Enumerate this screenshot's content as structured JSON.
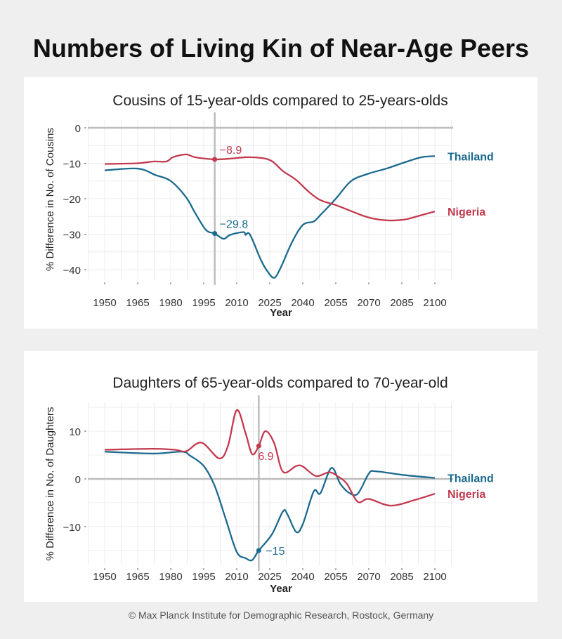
{
  "title": "Numbers of Living Kin of Near-Age Peers",
  "footer": "© Max Planck Institute for Demographic Research, Rostock, Germany",
  "colors": {
    "Thailand": "#1b6a8f",
    "Nigeria": "#c23a4e",
    "reference": "#bdbdbd"
  },
  "chart_data": [
    {
      "type": "line",
      "title": "Cousins of 15-year-olds compared to 25-years-olds",
      "xlabel": "Year",
      "ylabel": "% Difference in No. of Cousins",
      "xlim": [
        1950,
        2100
      ],
      "ylim": [
        -43,
        2
      ],
      "xticks": [
        1950,
        1965,
        1980,
        1995,
        2010,
        2025,
        2040,
        2055,
        2070,
        2085,
        2100
      ],
      "yticks": [
        0,
        -10,
        -20,
        -30,
        -40
      ],
      "ytick_labels": [
        "0",
        "−10",
        "−20",
        "−30",
        "−40"
      ],
      "grid": true,
      "reference_year": 2000,
      "legend": "direct labels at right end of lines",
      "series": [
        {
          "name": "Thailand",
          "annotation": "−29.8",
          "annotation_value": -29.8,
          "x": [
            1950,
            1965,
            1973,
            1980,
            1987,
            1991,
            1996,
            2000,
            2004,
            2007,
            2013,
            2014,
            2016,
            2021,
            2024,
            2027,
            2030,
            2035,
            2040,
            2045,
            2048,
            2055,
            2062,
            2070,
            2078,
            2086,
            2094,
            2100
          ],
          "y": [
            -12.0,
            -11.5,
            -13.3,
            -15,
            -19.6,
            -23.9,
            -28.8,
            -29.8,
            -31.3,
            -30.2,
            -29.4,
            -30.2,
            -30.1,
            -37.3,
            -40.5,
            -42.3,
            -39.4,
            -32.4,
            -27.4,
            -26.4,
            -24.6,
            -20,
            -15,
            -12.9,
            -11.5,
            -9.8,
            -8.3,
            -8
          ]
        },
        {
          "name": "Nigeria",
          "annotation": "−8.9",
          "annotation_value": -8.9,
          "x": [
            1950,
            1965,
            1972,
            1978,
            1981,
            1987,
            1991,
            2000,
            2007,
            2014,
            2021,
            2026,
            2031,
            2037,
            2043,
            2048,
            2055,
            2062,
            2070,
            2078,
            2086,
            2094,
            2100
          ],
          "y": [
            -10.2,
            -10,
            -9.5,
            -9.5,
            -8.3,
            -7.5,
            -8.3,
            -8.9,
            -8.7,
            -8.3,
            -8.5,
            -9.4,
            -12.2,
            -14.7,
            -18.2,
            -20.4,
            -21.8,
            -23.5,
            -25.3,
            -26.1,
            -25.9,
            -24.6,
            -23.6
          ]
        }
      ]
    },
    {
      "type": "line",
      "title": "Daughters of 65-year-olds compared to 70-year-old",
      "xlabel": "Year",
      "ylabel": "% Difference in No. of Daughters",
      "xlim": [
        1950,
        2100
      ],
      "ylim": [
        -18,
        16
      ],
      "xticks": [
        1950,
        1965,
        1980,
        1995,
        2010,
        2025,
        2040,
        2055,
        2070,
        2085,
        2100
      ],
      "yticks": [
        10,
        0,
        -10
      ],
      "ytick_labels": [
        "10",
        "0",
        "−10"
      ],
      "grid": true,
      "reference_year": 2020,
      "legend": "direct labels at right end of lines",
      "series": [
        {
          "name": "Thailand",
          "annotation": "−15",
          "annotation_value": -15,
          "x": [
            1950,
            1972,
            1985,
            1989,
            1995,
            2000,
            2005,
            2010,
            2014,
            2017,
            2020,
            2026,
            2031,
            2033,
            2037,
            2040,
            2045,
            2048,
            2053,
            2057,
            2061,
            2065,
            2070,
            2073,
            2086,
            2100
          ],
          "y": [
            5.7,
            5.3,
            5.7,
            4.8,
            2.7,
            -1.5,
            -8.4,
            -15.3,
            -16.6,
            -17,
            -15,
            -11.6,
            -6.8,
            -7.4,
            -11.1,
            -9.5,
            -2.6,
            -3,
            2.3,
            -1,
            -2.9,
            -3.1,
            1.1,
            1.6,
            0.8,
            0.2
          ]
        },
        {
          "name": "Nigeria",
          "annotation": "6.9",
          "annotation_value": 6.9,
          "x": [
            1950,
            1972,
            1982,
            1987,
            1994,
            2002,
            2006,
            2010,
            2014,
            2017,
            2020,
            2023,
            2027,
            2031,
            2037,
            2040,
            2046,
            2052,
            2056,
            2060,
            2065,
            2070,
            2080,
            2091,
            2100
          ],
          "y": [
            6.1,
            6.3,
            6.1,
            5.8,
            7.6,
            4.3,
            6.9,
            14.4,
            9.6,
            5.2,
            6.9,
            10,
            7.5,
            1.5,
            2.7,
            2.6,
            0.6,
            1.4,
            0.5,
            -1,
            -4.8,
            -4.2,
            -5.6,
            -4.4,
            -3.1
          ]
        }
      ]
    }
  ]
}
